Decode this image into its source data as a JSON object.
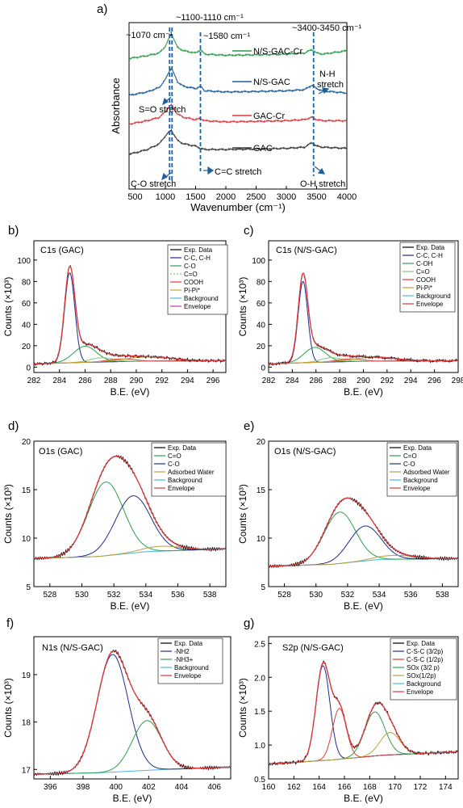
{
  "chart_data": [
    {
      "panel": "a)",
      "type": "line",
      "xlabel": "Wavenumber (cm⁻¹)",
      "ylabel": "Absorbance",
      "xlim": [
        400,
        4000
      ],
      "xticks": [
        500,
        1000,
        1500,
        2000,
        2500,
        3000,
        3500,
        4000
      ],
      "series": [
        {
          "name": "N/S-GAC-Cr",
          "color": "#2e9e4f",
          "offset": 3.0,
          "x": [
            400,
            500,
            700,
            900,
            1000,
            1070,
            1100,
            1110,
            1200,
            1300,
            1400,
            1500,
            1580,
            1650,
            2000,
            2500,
            3000,
            3300,
            3420,
            3500,
            3600,
            4000
          ],
          "y": [
            0.05,
            0.1,
            0.18,
            0.3,
            0.6,
            1.0,
            1.15,
            1.1,
            0.55,
            0.4,
            0.35,
            0.3,
            0.45,
            0.25,
            0.2,
            0.22,
            0.25,
            0.3,
            0.45,
            0.3,
            0.25,
            0.4
          ]
        },
        {
          "name": "N/S-GAC",
          "color": "#1f5f9e",
          "offset": 2.0,
          "x": [
            400,
            500,
            700,
            900,
            1000,
            1070,
            1100,
            1110,
            1200,
            1300,
            1400,
            1500,
            1580,
            1650,
            2000,
            2500,
            3000,
            3300,
            3420,
            3500,
            3600,
            4000
          ],
          "y": [
            0.0,
            0.05,
            0.15,
            0.35,
            0.7,
            1.1,
            1.2,
            1.15,
            0.6,
            0.4,
            0.35,
            0.3,
            0.4,
            0.2,
            0.15,
            0.17,
            0.2,
            0.25,
            0.45,
            0.3,
            0.2,
            0.1
          ]
        },
        {
          "name": "GAC-Cr",
          "color": "#e0393e",
          "offset": 1.0,
          "x": [
            400,
            500,
            700,
            900,
            1000,
            1070,
            1100,
            1110,
            1200,
            1300,
            1400,
            1500,
            1580,
            1650,
            2000,
            2500,
            3000,
            3300,
            3420,
            3500,
            3600,
            4000
          ],
          "y": [
            0.05,
            0.1,
            0.2,
            0.35,
            0.6,
            0.85,
            0.9,
            0.85,
            0.5,
            0.35,
            0.3,
            0.25,
            0.3,
            0.2,
            0.15,
            0.17,
            0.2,
            0.25,
            0.35,
            0.25,
            0.2,
            0.2
          ]
        },
        {
          "name": "GAC",
          "color": "#3a3a3a",
          "offset": 0.0,
          "x": [
            400,
            500,
            700,
            900,
            1000,
            1070,
            1100,
            1110,
            1200,
            1300,
            1400,
            1500,
            1580,
            1650,
            2000,
            2500,
            3000,
            3300,
            3420,
            3500,
            3600,
            4000
          ],
          "y": [
            0.05,
            0.1,
            0.25,
            0.5,
            0.85,
            1.05,
            1.1,
            1.05,
            0.65,
            0.5,
            0.45,
            0.4,
            0.3,
            0.25,
            0.25,
            0.27,
            0.3,
            0.35,
            0.55,
            0.4,
            0.35,
            0.3
          ]
        }
      ],
      "annotations": {
        "top": [
          "~1100-1110 cm⁻¹",
          "~1070 cm⁻¹",
          "~1580 cm⁻¹",
          "~3400-3450 cm⁻¹"
        ],
        "inside": [
          "S=O stretch",
          "N-H stretch",
          "C-O stretch",
          "C=C stretch",
          "O-H stretch"
        ]
      },
      "marker_lines": [
        1070,
        1110,
        1580,
        3450
      ]
    },
    {
      "panel": "b)",
      "type": "line",
      "title": "C1s (GAC)",
      "xlabel": "B.E. (eV)",
      "ylabel": "Counts (×10³)",
      "xlim": [
        282,
        297
      ],
      "ylim": [
        -5,
        118
      ],
      "xticks": [
        282,
        284,
        286,
        288,
        290,
        292,
        294,
        296
      ],
      "yticks": [
        0,
        20,
        40,
        60,
        80,
        100
      ],
      "legend": [
        "Exp. Data",
        "C-C, C-H",
        "C-O",
        "C=O",
        "COOH",
        "Pi-Pi*",
        "Background",
        "Envelope"
      ],
      "background": [
        [
          282,
          3
        ],
        [
          286,
          4.5
        ],
        [
          290,
          5.5
        ],
        [
          297,
          6
        ]
      ],
      "components": [
        {
          "name": "C-C, C-H",
          "center": 284.8,
          "height": 84,
          "width": 0.4
        },
        {
          "name": "C-O",
          "center": 286.0,
          "height": 15,
          "width": 0.9
        },
        {
          "name": "C=O",
          "center": 287.3,
          "height": 4,
          "width": 0.9
        },
        {
          "name": "COOH",
          "center": 288.8,
          "height": 2.5,
          "width": 1.0
        },
        {
          "name": "Pi-Pi*",
          "center": 291.0,
          "height": 4,
          "width": 1.8
        }
      ]
    },
    {
      "panel": "c)",
      "type": "line",
      "title": "C1s (N/S-GAC)",
      "xlabel": "B.E. (eV)",
      "ylabel": "Counts (×10³)",
      "xlim": [
        282,
        298
      ],
      "ylim": [
        -5,
        118
      ],
      "xticks": [
        282,
        284,
        286,
        288,
        290,
        292,
        294,
        296,
        298
      ],
      "yticks": [
        0,
        20,
        40,
        60,
        80,
        100
      ],
      "legend": [
        "Exp. Data",
        "C-C, C-H",
        "C-OH",
        "C=O",
        "COOH",
        "Pi-Pi*",
        "Background",
        "Envelope"
      ],
      "background": [
        [
          282,
          3
        ],
        [
          286,
          4.5
        ],
        [
          290,
          5.5
        ],
        [
          298,
          6
        ]
      ],
      "components": [
        {
          "name": "C-C, C-H",
          "center": 284.9,
          "height": 76,
          "width": 0.4
        },
        {
          "name": "C-OH",
          "center": 285.9,
          "height": 14,
          "width": 0.9
        },
        {
          "name": "C=O",
          "center": 287.3,
          "height": 4,
          "width": 0.9
        },
        {
          "name": "COOH",
          "center": 288.8,
          "height": 2.5,
          "width": 1.0
        },
        {
          "name": "Pi-Pi*",
          "center": 291.0,
          "height": 3.5,
          "width": 1.8
        }
      ]
    },
    {
      "panel": "d)",
      "type": "line",
      "title": "O1s (GAC)",
      "xlabel": "B.E. (eV)",
      "ylabel": "Counts (×10³)",
      "xlim": [
        527,
        539
      ],
      "ylim": [
        5,
        20
      ],
      "xticks": [
        528,
        530,
        532,
        534,
        536,
        538
      ],
      "yticks": [
        5,
        10,
        15,
        20
      ],
      "legend": [
        "Exp. Data",
        "C=O",
        "C-O",
        "Adsorbed Water",
        "Background",
        "Envelope"
      ],
      "background": [
        [
          527,
          7.9
        ],
        [
          531,
          8.1
        ],
        [
          534,
          8.6
        ],
        [
          539,
          8.9
        ]
      ],
      "components": [
        {
          "name": "C=O",
          "center": 531.5,
          "height": 7.6,
          "width": 1.1
        },
        {
          "name": "C-O",
          "center": 533.2,
          "height": 5.9,
          "width": 1.1
        },
        {
          "name": "Adsorbed Water",
          "center": 535.0,
          "height": 0.5,
          "width": 1.2
        }
      ]
    },
    {
      "panel": "e)",
      "type": "line",
      "title": "O1s (N/S-GAC)",
      "xlabel": "B.E. (eV)",
      "ylabel": "Counts (×10³)",
      "xlim": [
        527,
        539
      ],
      "ylim": [
        5,
        20
      ],
      "xticks": [
        528,
        530,
        532,
        534,
        536,
        538
      ],
      "yticks": [
        5,
        10,
        15,
        20
      ],
      "legend": [
        "Exp. Data",
        "C=O",
        "C-O",
        "Adsorbed Water",
        "Background",
        "Envelope"
      ],
      "background": [
        [
          527,
          7.1
        ],
        [
          531,
          7.3
        ],
        [
          534,
          7.8
        ],
        [
          539,
          7.9
        ]
      ],
      "components": [
        {
          "name": "C=O",
          "center": 531.5,
          "height": 5.3,
          "width": 1.0
        },
        {
          "name": "C-O",
          "center": 533.1,
          "height": 3.6,
          "width": 1.0
        },
        {
          "name": "Adsorbed Water",
          "center": 535.0,
          "height": 0.4,
          "width": 1.2
        }
      ]
    },
    {
      "panel": "f)",
      "type": "line",
      "title": "N1s (N/S-GAC)",
      "xlabel": "B.E. (eV)",
      "ylabel": "Counts (×10³)",
      "xlim": [
        395,
        407
      ],
      "ylim": [
        16.8,
        19.8
      ],
      "xticks": [
        396,
        398,
        400,
        402,
        404,
        406
      ],
      "yticks": [
        17,
        18,
        19
      ],
      "legend": [
        "Exp. Data",
        "-NH2",
        "-NH3+",
        "Background",
        "Envelope"
      ],
      "background": [
        [
          395,
          16.9
        ],
        [
          399,
          16.93
        ],
        [
          403,
          17.0
        ],
        [
          407,
          17.05
        ]
      ],
      "components": [
        {
          "name": "-NH2",
          "center": 399.8,
          "height": 2.48,
          "width": 0.95
        },
        {
          "name": "-NH3+",
          "center": 401.9,
          "height": 1.05,
          "width": 0.9
        }
      ]
    },
    {
      "panel": "g)",
      "type": "line",
      "title": "S2p (N/S-GAC)",
      "xlabel": "B.E. (eV)",
      "ylabel": "Counts (×10³)",
      "xlim": [
        160,
        175
      ],
      "ylim": [
        0.5,
        2.6
      ],
      "xticks": [
        160,
        162,
        164,
        166,
        168,
        170,
        172,
        174
      ],
      "yticks": [
        0.5,
        1.0,
        1.5,
        2.0,
        2.5
      ],
      "legend": [
        "Exp. Data",
        "C-S-C (3/2p)",
        "C-S-C (1/2p)",
        "SOx (3/2 p)",
        "SOx(1/2p)",
        "Background",
        "Envelope"
      ],
      "background": [
        [
          160,
          0.72
        ],
        [
          165,
          0.78
        ],
        [
          169,
          0.85
        ],
        [
          175,
          0.9
        ]
      ],
      "components": [
        {
          "name": "C-S-C (3/2p)",
          "center": 164.3,
          "height": 1.4,
          "width": 0.55
        },
        {
          "name": "C-S-C (1/2p)",
          "center": 165.6,
          "height": 0.75,
          "width": 0.55
        },
        {
          "name": "SOx (3/2 p)",
          "center": 168.4,
          "height": 0.65,
          "width": 0.8
        },
        {
          "name": "SOx(1/2p)",
          "center": 169.6,
          "height": 0.33,
          "width": 0.8
        }
      ]
    }
  ]
}
